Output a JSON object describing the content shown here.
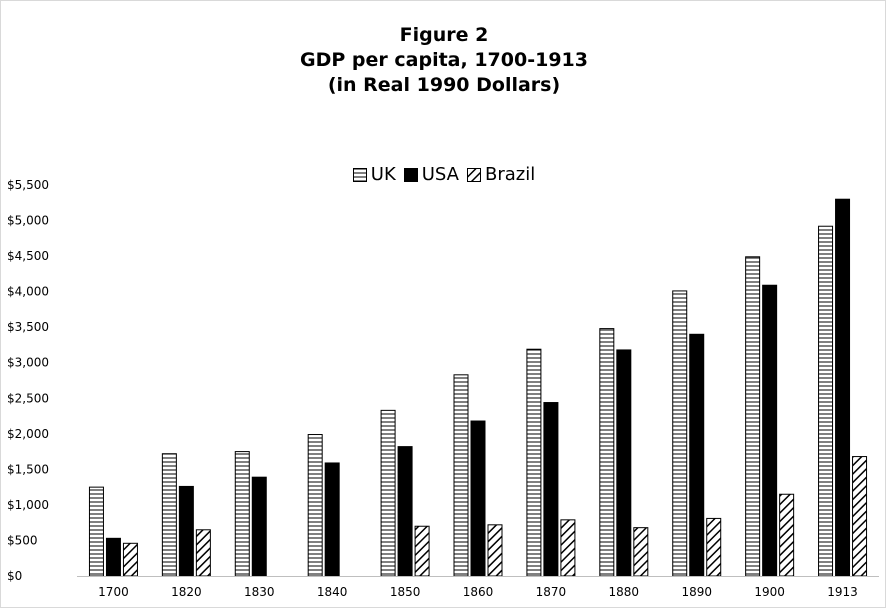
{
  "chart_data": {
    "type": "bar",
    "title_lines": [
      "Figure 2",
      "GDP per capita, 1700-1913",
      "(in Real 1990 Dollars)"
    ],
    "categories": [
      "1700",
      "1820",
      "1830",
      "1840",
      "1850",
      "1860",
      "1870",
      "1880",
      "1890",
      "1900",
      "1913"
    ],
    "series": [
      {
        "name": "UK",
        "pattern": "horizontal-stripes",
        "values": [
          1250,
          1720,
          1750,
          1990,
          2330,
          2830,
          3190,
          3480,
          4010,
          4490,
          4920
        ]
      },
      {
        "name": "USA",
        "pattern": "solid-black",
        "values": [
          530,
          1260,
          1390,
          1590,
          1820,
          2180,
          2440,
          3180,
          3400,
          4090,
          5300
        ]
      },
      {
        "name": "Brazil",
        "pattern": "diagonal-stripes",
        "values": [
          460,
          650,
          null,
          null,
          700,
          720,
          790,
          680,
          810,
          1150,
          1680
        ]
      }
    ],
    "yticks": [
      "$0",
      "$500",
      "$1,000",
      "$1,500",
      "$2,000",
      "$2,500",
      "$3,000",
      "$3,500",
      "$4,000",
      "$4,500",
      "$5,000",
      "$5,500"
    ],
    "ylim": [
      0,
      5500
    ],
    "xlabel": "",
    "ylabel": "",
    "legend_position": "top-center",
    "grid": false,
    "colors": {
      "bar_fill": "#ffffff",
      "bar_stroke": "#000000",
      "solid": "#000000",
      "axis": "#bfbfbf"
    }
  }
}
